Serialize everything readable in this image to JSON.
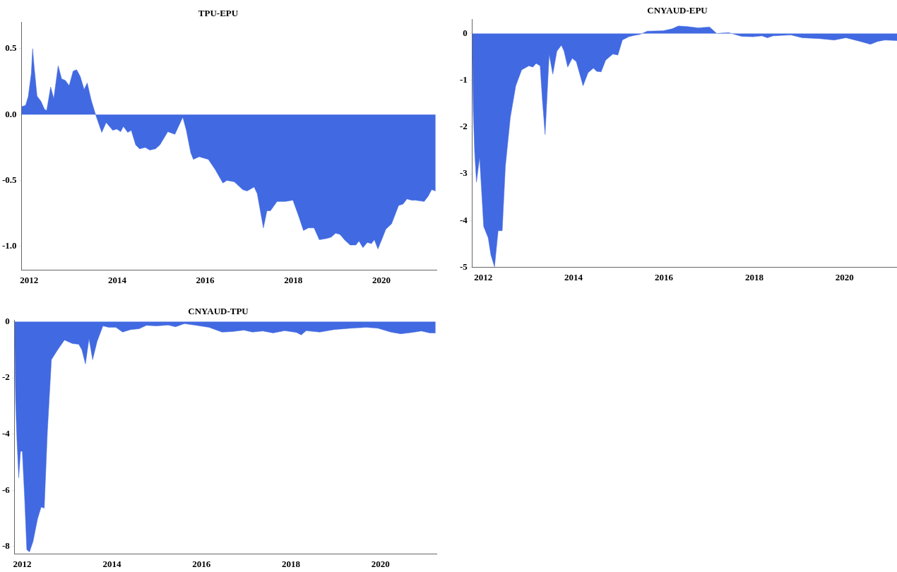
{
  "chart_data": [
    {
      "type": "area",
      "title": "TPU-EPU",
      "xlim": [
        2011.83,
        2021.25
      ],
      "xticks": [
        2012,
        2014,
        2016,
        2018,
        2020
      ],
      "ylim": [
        -1.18,
        0.7
      ],
      "yticks": [
        {
          "value": -1,
          "label": "-1.0"
        },
        {
          "value": -0.5,
          "label": "-0.5"
        },
        {
          "value": 0,
          "label": "0.0"
        },
        {
          "value": 0.5,
          "label": "0.5"
        }
      ],
      "grid": false,
      "legend": false,
      "x": [
        2011.83,
        2011.92,
        2011.98,
        2012.05,
        2012.08,
        2012.11,
        2012.18,
        2012.27,
        2012.35,
        2012.4,
        2012.49,
        2012.56,
        2012.66,
        2012.74,
        2012.82,
        2012.91,
        2013.0,
        2013.08,
        2013.16,
        2013.25,
        2013.32,
        2013.41,
        2013.51,
        2013.65,
        2013.75,
        2013.9,
        2013.99,
        2014.08,
        2014.14,
        2014.24,
        2014.32,
        2014.42,
        2014.51,
        2014.64,
        2014.74,
        2014.87,
        2014.97,
        2015.15,
        2015.31,
        2015.49,
        2015.57,
        2015.67,
        2015.73,
        2015.86,
        2016.07,
        2016.23,
        2016.4,
        2016.49,
        2016.66,
        2016.85,
        2016.95,
        2017.11,
        2017.18,
        2017.32,
        2017.4,
        2017.48,
        2017.63,
        2017.82,
        2017.99,
        2018.12,
        2018.23,
        2018.34,
        2018.47,
        2018.59,
        2018.77,
        2018.86,
        2018.96,
        2019.06,
        2019.16,
        2019.29,
        2019.42,
        2019.49,
        2019.58,
        2019.68,
        2019.77,
        2019.84,
        2019.92,
        2020.03,
        2020.1,
        2020.23,
        2020.39,
        2020.49,
        2020.58,
        2020.68,
        2020.77,
        2020.97,
        2021.06,
        2021.14,
        2021.23
      ],
      "series": [
        {
          "color": "#4169e1",
          "values": [
            0.06,
            0.07,
            0.135,
            0.31,
            0.5,
            0.38,
            0.14,
            0.1,
            0.04,
            0.03,
            0.21,
            0.12,
            0.37,
            0.27,
            0.26,
            0.22,
            0.33,
            0.34,
            0.29,
            0.19,
            0.24,
            0.11,
            0,
            -0.135,
            -0.06,
            -0.12,
            -0.11,
            -0.13,
            -0.09,
            -0.135,
            -0.12,
            -0.23,
            -0.26,
            -0.25,
            -0.27,
            -0.26,
            -0.23,
            -0.13,
            -0.15,
            -0.02,
            -0.12,
            -0.29,
            -0.34,
            -0.32,
            -0.34,
            -0.42,
            -0.52,
            -0.5,
            -0.51,
            -0.57,
            -0.58,
            -0.55,
            -0.6,
            -0.86,
            -0.73,
            -0.73,
            -0.66,
            -0.66,
            -0.65,
            -0.77,
            -0.88,
            -0.86,
            -0.86,
            -0.95,
            -0.94,
            -0.93,
            -0.9,
            -0.91,
            -0.95,
            -0.99,
            -0.99,
            -0.96,
            -1.01,
            -0.97,
            -0.98,
            -0.95,
            -1.02,
            -0.93,
            -0.87,
            -0.83,
            -0.69,
            -0.68,
            -0.64,
            -0.65,
            -0.65,
            -0.66,
            -0.62,
            -0.57,
            -0.58
          ]
        }
      ]
    },
    {
      "type": "area",
      "title": "CNYAUD-EPU",
      "xlim": [
        2011.76,
        2021.16
      ],
      "xticks": [
        2012,
        2014,
        2016,
        2018,
        2020
      ],
      "ylim": [
        -5,
        0.3
      ],
      "yticks": [
        -5,
        -4,
        -3,
        -2,
        -1,
        0
      ],
      "grid": false,
      "legend": false,
      "x": [
        2011.76,
        2011.78,
        2011.81,
        2011.85,
        2011.92,
        2012.01,
        2012.11,
        2012.17,
        2012.25,
        2012.33,
        2012.42,
        2012.49,
        2012.6,
        2012.72,
        2012.85,
        2013.01,
        2013.1,
        2013.17,
        2013.26,
        2013.31,
        2013.37,
        2013.46,
        2013.54,
        2013.63,
        2013.73,
        2013.79,
        2013.87,
        2013.97,
        2014.06,
        2014.21,
        2014.32,
        2014.44,
        2014.51,
        2014.61,
        2014.71,
        2014.87,
        2014.98,
        2015.08,
        2015.22,
        2015.35,
        2015.47,
        2015.63,
        2015.99,
        2016.18,
        2016.32,
        2016.5,
        2016.76,
        2017.01,
        2017.17,
        2017.43,
        2017.72,
        2017.97,
        2018.17,
        2018.29,
        2018.42,
        2018.81,
        2019.06,
        2019.45,
        2019.77,
        2020.03,
        2020.35,
        2020.57,
        2020.73,
        2020.89,
        2021.16
      ],
      "series": [
        {
          "color": "#4169e1",
          "values": [
            -0.38,
            -1.67,
            -2.53,
            -3.18,
            -2.65,
            -4.13,
            -4.37,
            -4.74,
            -4.99,
            -4.22,
            -4.22,
            -2.84,
            -1.79,
            -1.12,
            -0.78,
            -0.69,
            -0.72,
            -0.64,
            -0.69,
            -1.43,
            -2.16,
            -0.44,
            -0.87,
            -0.38,
            -0.25,
            -0.38,
            -0.72,
            -0.53,
            -0.6,
            -1.12,
            -0.84,
            -0.74,
            -0.81,
            -0.82,
            -0.57,
            -0.44,
            -0.46,
            -0.14,
            -0.07,
            -0.04,
            -0.02,
            0.05,
            0.06,
            0.1,
            0.16,
            0.15,
            0.12,
            0.14,
            0,
            0.02,
            -0.06,
            -0.07,
            -0.05,
            -0.09,
            -0.05,
            -0.03,
            -0.09,
            -0.11,
            -0.14,
            -0.09,
            -0.17,
            -0.23,
            -0.17,
            -0.14,
            -0.15
          ]
        }
      ]
    },
    {
      "type": "area",
      "title": "CNYAUD-TPU",
      "xlim": [
        2011.83,
        2021.25
      ],
      "xticks": [
        2012,
        2014,
        2016,
        2018,
        2020
      ],
      "ylim": [
        -8.27,
        0.05
      ],
      "yticks": [
        -8,
        -6,
        -4,
        -2,
        0
      ],
      "grid": false,
      "legend": false,
      "x": [
        2011.83,
        2011.85,
        2011.88,
        2011.92,
        2011.96,
        2012.0,
        2012.05,
        2012.1,
        2012.16,
        2012.24,
        2012.34,
        2012.42,
        2012.49,
        2012.56,
        2012.65,
        2012.79,
        2012.94,
        2013.12,
        2013.26,
        2013.33,
        2013.41,
        2013.49,
        2013.57,
        2013.67,
        2013.8,
        2013.93,
        2014.09,
        2014.24,
        2014.42,
        2014.61,
        2014.77,
        2015.0,
        2015.26,
        2015.42,
        2015.62,
        2015.84,
        2016.17,
        2016.46,
        2016.69,
        2016.95,
        2017.14,
        2017.37,
        2017.6,
        2017.86,
        2018.12,
        2018.23,
        2018.34,
        2018.64,
        2018.96,
        2019.35,
        2019.68,
        2019.94,
        2020.23,
        2020.45,
        2020.71,
        2020.91,
        2021.1,
        2021.23
      ],
      "series": [
        {
          "color": "#4169e1",
          "values": [
            -0.6,
            -2.81,
            -4.21,
            -5.56,
            -4.61,
            -4.61,
            -6.22,
            -8.12,
            -8.2,
            -7.82,
            -7.02,
            -6.6,
            -6.64,
            -3.91,
            -1.35,
            -1,
            -0.65,
            -0.78,
            -0.8,
            -1,
            -1.5,
            -0.6,
            -1.35,
            -0.7,
            -0.15,
            -0.2,
            -0.2,
            -0.37,
            -0.28,
            -0.25,
            -0.13,
            -0.15,
            -0.12,
            -0.18,
            -0.07,
            -0.12,
            -0.2,
            -0.37,
            -0.35,
            -0.3,
            -0.37,
            -0.33,
            -0.4,
            -0.32,
            -0.38,
            -0.47,
            -0.32,
            -0.37,
            -0.28,
            -0.23,
            -0.2,
            -0.23,
            -0.37,
            -0.43,
            -0.38,
            -0.33,
            -0.4,
            -0.4
          ]
        }
      ]
    }
  ]
}
